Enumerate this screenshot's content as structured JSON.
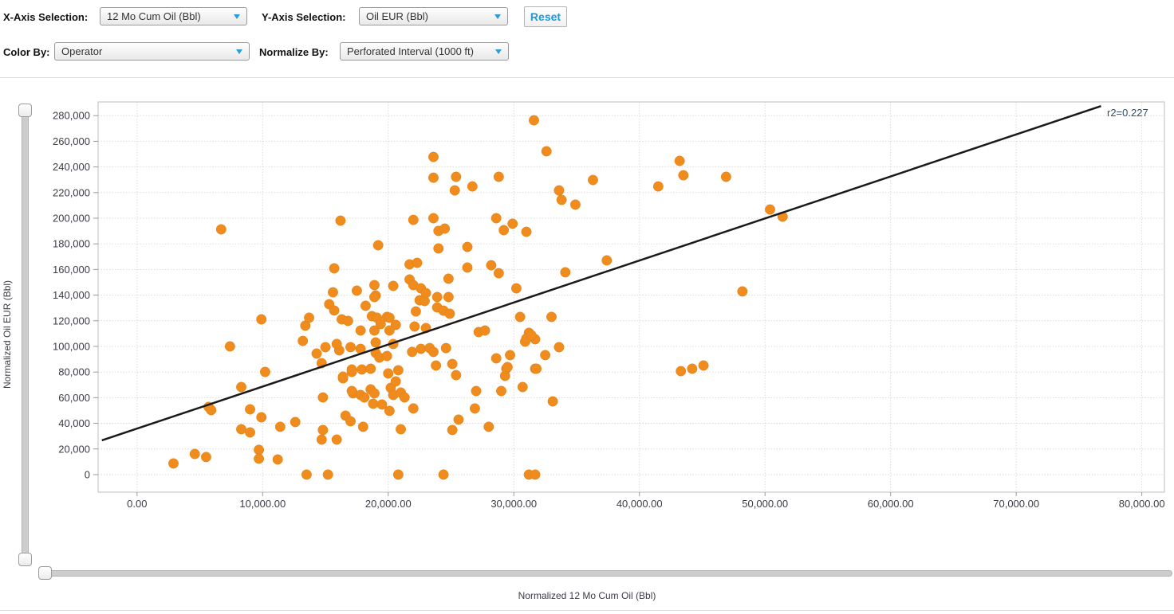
{
  "toolbar": {
    "x_axis_label": "X-Axis Selection:",
    "x_axis_value": "12 Mo Cum Oil (Bbl)",
    "y_axis_label": "Y-Axis Selection:",
    "y_axis_value": "Oil EUR (Bbl)",
    "reset_label": "Reset",
    "color_by_label": "Color By:",
    "color_by_value": "Operator",
    "normalize_by_label": "Normalize By:",
    "normalize_by_value": "Perforated Interval (1000 ft)"
  },
  "colors": {
    "dot": "#F08C1E",
    "trend": "#1a1a1a",
    "accent_blue": "#1B9AD7",
    "grid": "#dbdbdb",
    "axis": "#bdbdbd",
    "tick": "#9a9a9a",
    "tick_text": "#3c3c46",
    "r2_text": "#2F4C74"
  },
  "chart_data": {
    "type": "scatter",
    "title": "",
    "xlabel": "Normalized 12 Mo Cum Oil (Bbl)",
    "ylabel": "Normalized Oil EUR (Bbl)",
    "xlim": [
      -3100,
      81800
    ],
    "ylim": [
      -13700,
      290700
    ],
    "grid": true,
    "legend": "none",
    "r2_label": "r2=0.227",
    "x_ticks": [
      {
        "value": 0,
        "label": "0.00"
      },
      {
        "value": 10000,
        "label": "10,000.00"
      },
      {
        "value": 20000,
        "label": "20,000.00"
      },
      {
        "value": 30000,
        "label": "30,000.00"
      },
      {
        "value": 40000,
        "label": "40,000.00"
      },
      {
        "value": 50000,
        "label": "50,000.00"
      },
      {
        "value": 60000,
        "label": "60,000.00"
      },
      {
        "value": 70000,
        "label": "70,000.00"
      },
      {
        "value": 80000,
        "label": "80,000.00"
      }
    ],
    "y_ticks": [
      {
        "value": 0,
        "label": "0"
      },
      {
        "value": 20000,
        "label": "20,000"
      },
      {
        "value": 40000,
        "label": "40,000"
      },
      {
        "value": 60000,
        "label": "60,000"
      },
      {
        "value": 80000,
        "label": "80,000"
      },
      {
        "value": 100000,
        "label": "100,000"
      },
      {
        "value": 120000,
        "label": "120,000"
      },
      {
        "value": 140000,
        "label": "140,000"
      },
      {
        "value": 160000,
        "label": "160,000"
      },
      {
        "value": 180000,
        "label": "180,000"
      },
      {
        "value": 200000,
        "label": "200,000"
      },
      {
        "value": 220000,
        "label": "220,000"
      },
      {
        "value": 240000,
        "label": "240,000"
      },
      {
        "value": 260000,
        "label": "260,000"
      },
      {
        "value": 280000,
        "label": "280,000"
      }
    ],
    "trend_line": {
      "x1": -2800,
      "y1": 26700,
      "x2": 76750,
      "y2": 287500
    },
    "points": [
      [
        2900,
        8700
      ],
      [
        4600,
        16100
      ],
      [
        5500,
        13700
      ],
      [
        9700,
        19300
      ],
      [
        9700,
        12400
      ],
      [
        11200,
        11800
      ],
      [
        13500,
        0
      ],
      [
        15200,
        0
      ],
      [
        20800,
        0
      ],
      [
        24400,
        0
      ],
      [
        31200,
        0
      ],
      [
        31700,
        0
      ],
      [
        5700,
        52800
      ],
      [
        5900,
        50300
      ],
      [
        9000,
        50900
      ],
      [
        9900,
        44700
      ],
      [
        8300,
        35400
      ],
      [
        9000,
        32900
      ],
      [
        11400,
        37300
      ],
      [
        12600,
        41000
      ],
      [
        14800,
        34800
      ],
      [
        14700,
        27300
      ],
      [
        15900,
        27300
      ],
      [
        16600,
        46000
      ],
      [
        17000,
        41600
      ],
      [
        18000,
        37300
      ],
      [
        21000,
        35400
      ],
      [
        8300,
        68300
      ],
      [
        10200,
        80100
      ],
      [
        7400,
        100000
      ],
      [
        9900,
        121100
      ],
      [
        6700,
        191300
      ],
      [
        13200,
        104300
      ],
      [
        13400,
        116200
      ],
      [
        13700,
        122400
      ],
      [
        15300,
        132900
      ],
      [
        15700,
        128000
      ],
      [
        15000,
        99400
      ],
      [
        14300,
        94400
      ],
      [
        14700,
        86900
      ],
      [
        16100,
        96900
      ],
      [
        17000,
        99400
      ],
      [
        16400,
        75100
      ],
      [
        17100,
        80100
      ],
      [
        17200,
        63400
      ],
      [
        14800,
        60200
      ],
      [
        16400,
        76400
      ],
      [
        17100,
        82000
      ],
      [
        17900,
        82000
      ],
      [
        18600,
        82600
      ],
      [
        17100,
        65200
      ],
      [
        17800,
        62100
      ],
      [
        18100,
        60200
      ],
      [
        18600,
        66500
      ],
      [
        18900,
        63400
      ],
      [
        18800,
        55300
      ],
      [
        19500,
        54700
      ],
      [
        20000,
        78900
      ],
      [
        20200,
        67700
      ],
      [
        20400,
        62100
      ],
      [
        20100,
        49700
      ],
      [
        20600,
        72700
      ],
      [
        20800,
        81400
      ],
      [
        21000,
        64000
      ],
      [
        21300,
        60200
      ],
      [
        22000,
        51600
      ],
      [
        25400,
        77600
      ],
      [
        27000,
        65200
      ],
      [
        26900,
        51600
      ],
      [
        25600,
        42900
      ],
      [
        25100,
        34800
      ],
      [
        28000,
        37300
      ],
      [
        29000,
        65200
      ],
      [
        29300,
        77000
      ],
      [
        29400,
        82600
      ],
      [
        30700,
        68300
      ],
      [
        31700,
        82600
      ],
      [
        33100,
        57100
      ],
      [
        15900,
        101900
      ],
      [
        16300,
        121100
      ],
      [
        16800,
        119900
      ],
      [
        17800,
        112400
      ],
      [
        17800,
        98100
      ],
      [
        18200,
        131700
      ],
      [
        18700,
        123600
      ],
      [
        19100,
        122400
      ],
      [
        18900,
        112400
      ],
      [
        19000,
        103100
      ],
      [
        19000,
        95000
      ],
      [
        19300,
        91300
      ],
      [
        19900,
        92500
      ],
      [
        19400,
        117400
      ],
      [
        19900,
        123000
      ],
      [
        20100,
        122400
      ],
      [
        20600,
        116800
      ],
      [
        20400,
        101900
      ],
      [
        20100,
        112400
      ],
      [
        21900,
        95700
      ],
      [
        22600,
        98100
      ],
      [
        23300,
        98700
      ],
      [
        23600,
        95700
      ],
      [
        24600,
        98700
      ],
      [
        25100,
        86300
      ],
      [
        23800,
        85100
      ],
      [
        22100,
        115500
      ],
      [
        22200,
        127300
      ],
      [
        23000,
        114300
      ],
      [
        23900,
        130400
      ],
      [
        24400,
        127900
      ],
      [
        24900,
        125500
      ],
      [
        22500,
        136000
      ],
      [
        22900,
        135400
      ],
      [
        27200,
        111200
      ],
      [
        27700,
        112400
      ],
      [
        28600,
        90700
      ],
      [
        29500,
        83900
      ],
      [
        29700,
        93200
      ],
      [
        30500,
        123000
      ],
      [
        30900,
        103700
      ],
      [
        31200,
        110600
      ],
      [
        31700,
        105600
      ],
      [
        31000,
        106200
      ],
      [
        31400,
        108700
      ],
      [
        33000,
        123000
      ],
      [
        33600,
        99400
      ],
      [
        32500,
        93200
      ],
      [
        31800,
        82600
      ],
      [
        43300,
        80700
      ],
      [
        44200,
        82600
      ],
      [
        45100,
        85100
      ],
      [
        48200,
        142900
      ],
      [
        15600,
        142200
      ],
      [
        17500,
        143500
      ],
      [
        18900,
        147800
      ],
      [
        19000,
        139700
      ],
      [
        20400,
        147200
      ],
      [
        18900,
        138500
      ],
      [
        15700,
        160900
      ],
      [
        16200,
        198100
      ],
      [
        19200,
        178900
      ],
      [
        21700,
        152200
      ],
      [
        24800,
        152800
      ],
      [
        22000,
        147800
      ],
      [
        22600,
        145300
      ],
      [
        23000,
        141600
      ],
      [
        23900,
        138500
      ],
      [
        24800,
        138500
      ],
      [
        30200,
        145300
      ],
      [
        21700,
        164000
      ],
      [
        22300,
        165200
      ],
      [
        26300,
        161500
      ],
      [
        28200,
        163300
      ],
      [
        28800,
        157100
      ],
      [
        26300,
        177600
      ],
      [
        24000,
        176400
      ],
      [
        22000,
        198700
      ],
      [
        23600,
        200000
      ],
      [
        24000,
        190100
      ],
      [
        24500,
        191900
      ],
      [
        28600,
        200000
      ],
      [
        29200,
        190700
      ],
      [
        29900,
        195700
      ],
      [
        31000,
        189400
      ],
      [
        23600,
        247800
      ],
      [
        23600,
        231600
      ],
      [
        25400,
        232300
      ],
      [
        28800,
        232300
      ],
      [
        25300,
        221700
      ],
      [
        26700,
        224800
      ],
      [
        31600,
        276400
      ],
      [
        32600,
        252200
      ],
      [
        36300,
        229800
      ],
      [
        33600,
        221700
      ],
      [
        33800,
        214300
      ],
      [
        34900,
        210600
      ],
      [
        41500,
        224800
      ],
      [
        43200,
        244700
      ],
      [
        43500,
        233500
      ],
      [
        46900,
        232300
      ],
      [
        50400,
        206800
      ],
      [
        51400,
        201200
      ],
      [
        34100,
        157800
      ],
      [
        37400,
        167100
      ]
    ]
  }
}
